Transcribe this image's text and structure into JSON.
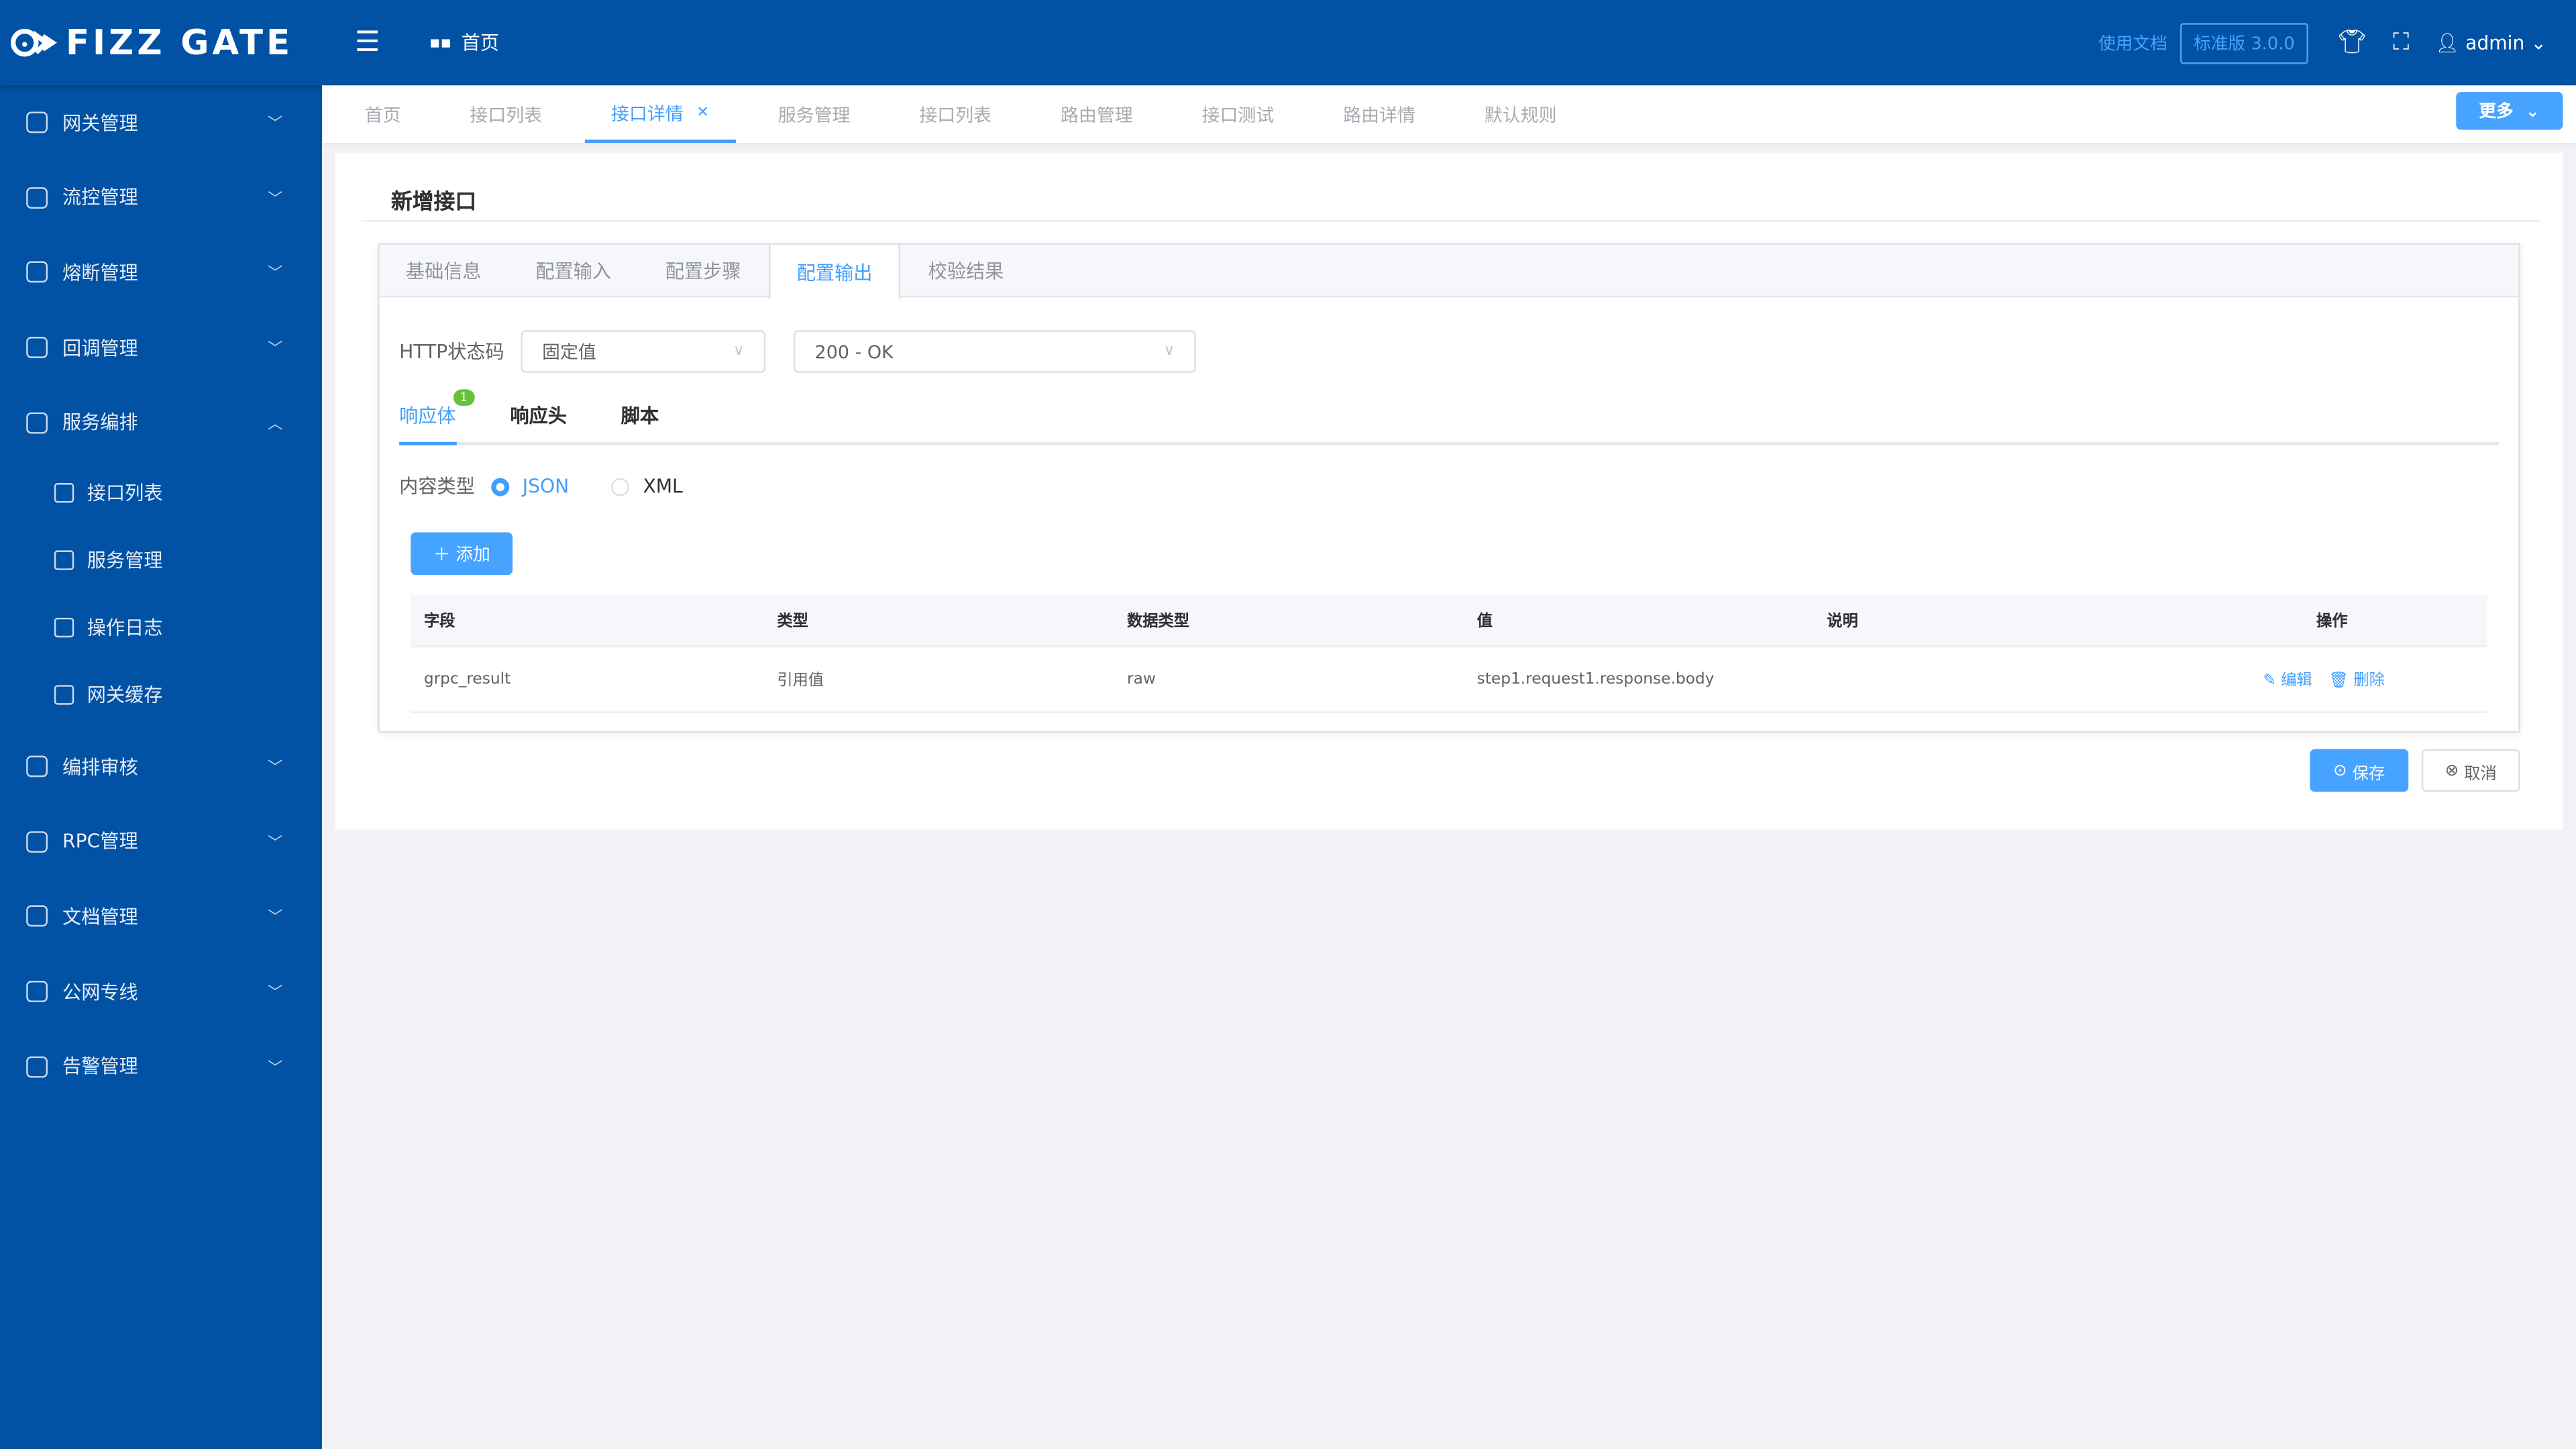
{
  "app": {
    "logo": "FIZZ GATE",
    "brand_color": "#0151a4",
    "accent_color": "#409eff"
  },
  "header": {
    "home": "首页",
    "docs": "使用文档",
    "version": "标准版 3.0.0",
    "user": "admin"
  },
  "sidebar": {
    "items": [
      {
        "label": "网关管理",
        "icon": "cloud-icon"
      },
      {
        "label": "流控管理",
        "icon": "sitemap-icon"
      },
      {
        "label": "熔断管理",
        "icon": "calendar-icon"
      },
      {
        "label": "回调管理",
        "icon": "callback-icon"
      },
      {
        "label": "服务编排",
        "icon": "grid-icon",
        "expanded": true,
        "children": [
          {
            "label": "接口列表",
            "icon": "list-icon"
          },
          {
            "label": "服务管理",
            "icon": "service-icon"
          },
          {
            "label": "操作日志",
            "icon": "log-icon"
          },
          {
            "label": "网关缓存",
            "icon": "cache-icon"
          }
        ]
      },
      {
        "label": "编排审核",
        "icon": "audit-icon"
      },
      {
        "label": "RPC管理",
        "icon": "rpc-icon"
      },
      {
        "label": "文档管理",
        "icon": "doc-icon"
      },
      {
        "label": "公网专线",
        "icon": "network-icon"
      },
      {
        "label": "告警管理",
        "icon": "bell-icon"
      }
    ]
  },
  "tabs": [
    "首页",
    "接口列表",
    "接口详情",
    "服务管理",
    "接口列表",
    "路由管理",
    "接口测试",
    "路由详情",
    "默认规则"
  ],
  "active_tab": "接口详情",
  "more": "更多",
  "card": {
    "title": "新增接口",
    "steps": [
      "基础信息",
      "配置输入",
      "配置步骤",
      "配置输出",
      "校验结果"
    ],
    "active_step": "配置输出",
    "http_label": "HTTP状态码",
    "http_mode": "固定值",
    "http_code": "200 - OK",
    "resp_tabs": [
      "响应体",
      "响应头",
      "脚本"
    ],
    "resp_badge": "1",
    "content_type_label": "内容类型",
    "content_types": [
      "JSON",
      "XML"
    ],
    "content_type_selected": "JSON",
    "add": "添加",
    "columns": [
      "字段",
      "类型",
      "数据类型",
      "值",
      "说明",
      "操作"
    ],
    "rows": [
      {
        "field": "grpc_result",
        "type": "引用值",
        "data_type": "raw",
        "value": "step1.request1.response.body",
        "desc": ""
      }
    ],
    "edit": "编辑",
    "delete": "删除",
    "save": "保存",
    "cancel": "取消"
  }
}
